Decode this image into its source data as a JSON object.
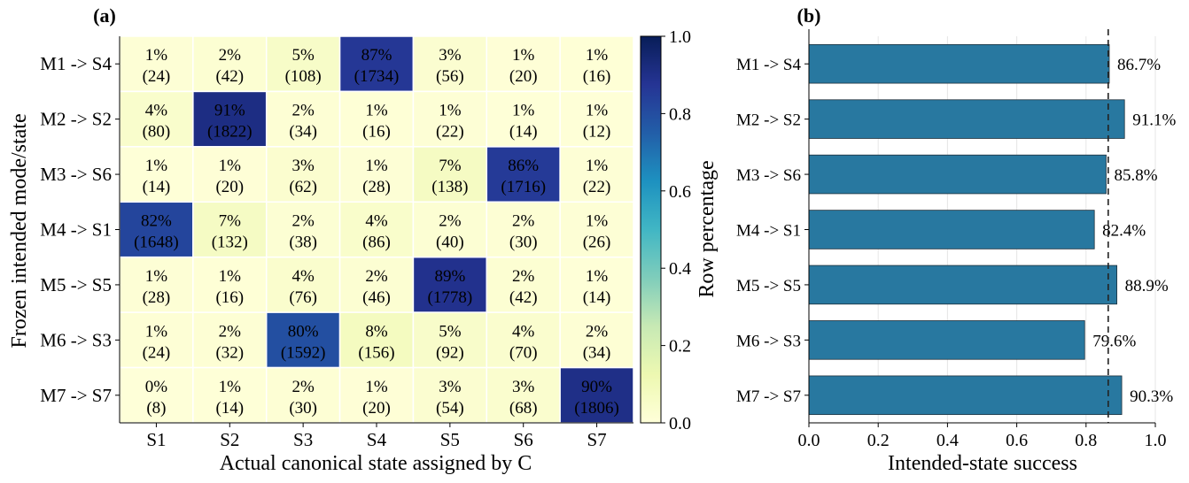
{
  "chart_data": [
    {
      "type": "heatmap",
      "panel_label": "(a)",
      "xlabel": "Actual canonical state assigned by C",
      "ylabel": "Frozen intended mode/state",
      "rows": [
        "M1 -> S4",
        "M2 -> S2",
        "M3 -> S6",
        "M4 -> S1",
        "M5 -> S5",
        "M6 -> S3",
        "M7 -> S7"
      ],
      "columns": [
        "S1",
        "S2",
        "S3",
        "S4",
        "S5",
        "S6",
        "S7"
      ],
      "percent_labels": [
        [
          "1%",
          "2%",
          "5%",
          "87%",
          "3%",
          "1%",
          "1%"
        ],
        [
          "4%",
          "91%",
          "2%",
          "1%",
          "1%",
          "1%",
          "1%"
        ],
        [
          "1%",
          "1%",
          "3%",
          "1%",
          "7%",
          "86%",
          "1%"
        ],
        [
          "82%",
          "7%",
          "2%",
          "4%",
          "2%",
          "2%",
          "1%"
        ],
        [
          "1%",
          "1%",
          "4%",
          "2%",
          "89%",
          "2%",
          "1%"
        ],
        [
          "1%",
          "2%",
          "80%",
          "8%",
          "5%",
          "4%",
          "2%"
        ],
        [
          "0%",
          "1%",
          "2%",
          "1%",
          "3%",
          "3%",
          "90%"
        ]
      ],
      "count_labels": [
        [
          "(24)",
          "(42)",
          "(108)",
          "(1734)",
          "(56)",
          "(20)",
          "(16)"
        ],
        [
          "(80)",
          "(1822)",
          "(34)",
          "(16)",
          "(22)",
          "(14)",
          "(12)"
        ],
        [
          "(14)",
          "(20)",
          "(62)",
          "(28)",
          "(138)",
          "(1716)",
          "(22)"
        ],
        [
          "(1648)",
          "(132)",
          "(38)",
          "(86)",
          "(40)",
          "(30)",
          "(26)"
        ],
        [
          "(28)",
          "(16)",
          "(76)",
          "(46)",
          "(1778)",
          "(42)",
          "(14)"
        ],
        [
          "(24)",
          "(32)",
          "(1592)",
          "(156)",
          "(92)",
          "(70)",
          "(34)"
        ],
        [
          "(8)",
          "(14)",
          "(30)",
          "(20)",
          "(54)",
          "(68)",
          "(1806)"
        ]
      ],
      "values": [
        [
          0.012,
          0.021,
          0.054,
          0.867,
          0.028,
          0.01,
          0.008
        ],
        [
          0.04,
          0.911,
          0.017,
          0.008,
          0.011,
          0.007,
          0.006
        ],
        [
          0.007,
          0.01,
          0.031,
          0.014,
          0.069,
          0.858,
          0.011
        ],
        [
          0.824,
          0.066,
          0.019,
          0.043,
          0.02,
          0.015,
          0.013
        ],
        [
          0.014,
          0.008,
          0.038,
          0.023,
          0.889,
          0.021,
          0.007
        ],
        [
          0.012,
          0.016,
          0.796,
          0.078,
          0.046,
          0.035,
          0.017
        ],
        [
          0.004,
          0.007,
          0.015,
          0.01,
          0.027,
          0.034,
          0.903
        ]
      ],
      "colorbar": {
        "label": "Row percentage",
        "range": [
          0.0,
          1.0
        ],
        "ticks": [
          "0.0",
          "0.2",
          "0.4",
          "0.6",
          "0.8",
          "1.0"
        ],
        "colormap": "YlGnBu"
      }
    },
    {
      "type": "bar",
      "orientation": "horizontal",
      "panel_label": "(b)",
      "xlabel": "Intended-state success",
      "categories": [
        "M1 -> S4",
        "M2 -> S2",
        "M3 -> S6",
        "M4 -> S1",
        "M5 -> S5",
        "M6 -> S3",
        "M7 -> S7"
      ],
      "values": [
        0.867,
        0.911,
        0.858,
        0.824,
        0.889,
        0.796,
        0.903
      ],
      "value_labels": [
        "86.7%",
        "91.1%",
        "85.8%",
        "82.4%",
        "88.9%",
        "79.6%",
        "90.3%"
      ],
      "xlim": [
        0.0,
        1.0
      ],
      "xticks": [
        "0.0",
        "0.2",
        "0.4",
        "0.6",
        "0.8",
        "1.0"
      ],
      "reference_line": 0.864,
      "bar_color": "#2878a0",
      "grid": true
    }
  ]
}
